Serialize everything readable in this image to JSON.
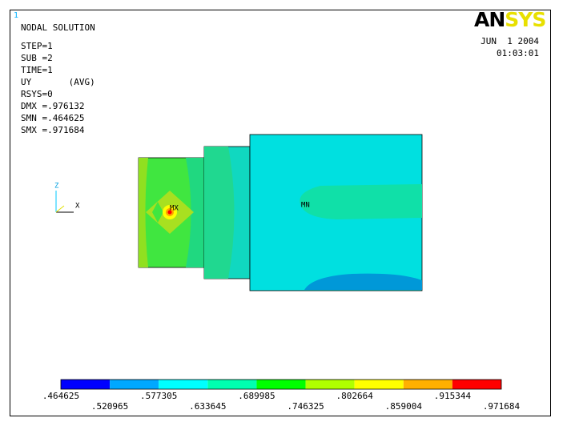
{
  "window_number": "1",
  "info_lines": [
    "NODAL SOLUTION",
    "STEP=1",
    "SUB =2",
    "TIME=1",
    "UY       (AVG)",
    "RSYS=0",
    "DMX =.976132",
    "SMN =.464625",
    "SMX =.971684"
  ],
  "logo_parts": [
    "AN",
    "SYS"
  ],
  "date": "JUN  1 2004",
  "time": "01:03:01",
  "markers": {
    "max": "MX",
    "min": "MN"
  },
  "axes": {
    "z": "Z",
    "x": "X"
  },
  "legend": {
    "colors": [
      "#0000ff",
      "#00a8ff",
      "#00ffff",
      "#00ffb0",
      "#00ff00",
      "#b0ff00",
      "#ffff00",
      "#ffb000",
      "#ff0000"
    ],
    "labels": [
      ".464625",
      ".520965",
      ".577305",
      ".633645",
      ".689985",
      ".746325",
      ".802664",
      ".859004",
      ".915344",
      ".971684"
    ]
  }
}
